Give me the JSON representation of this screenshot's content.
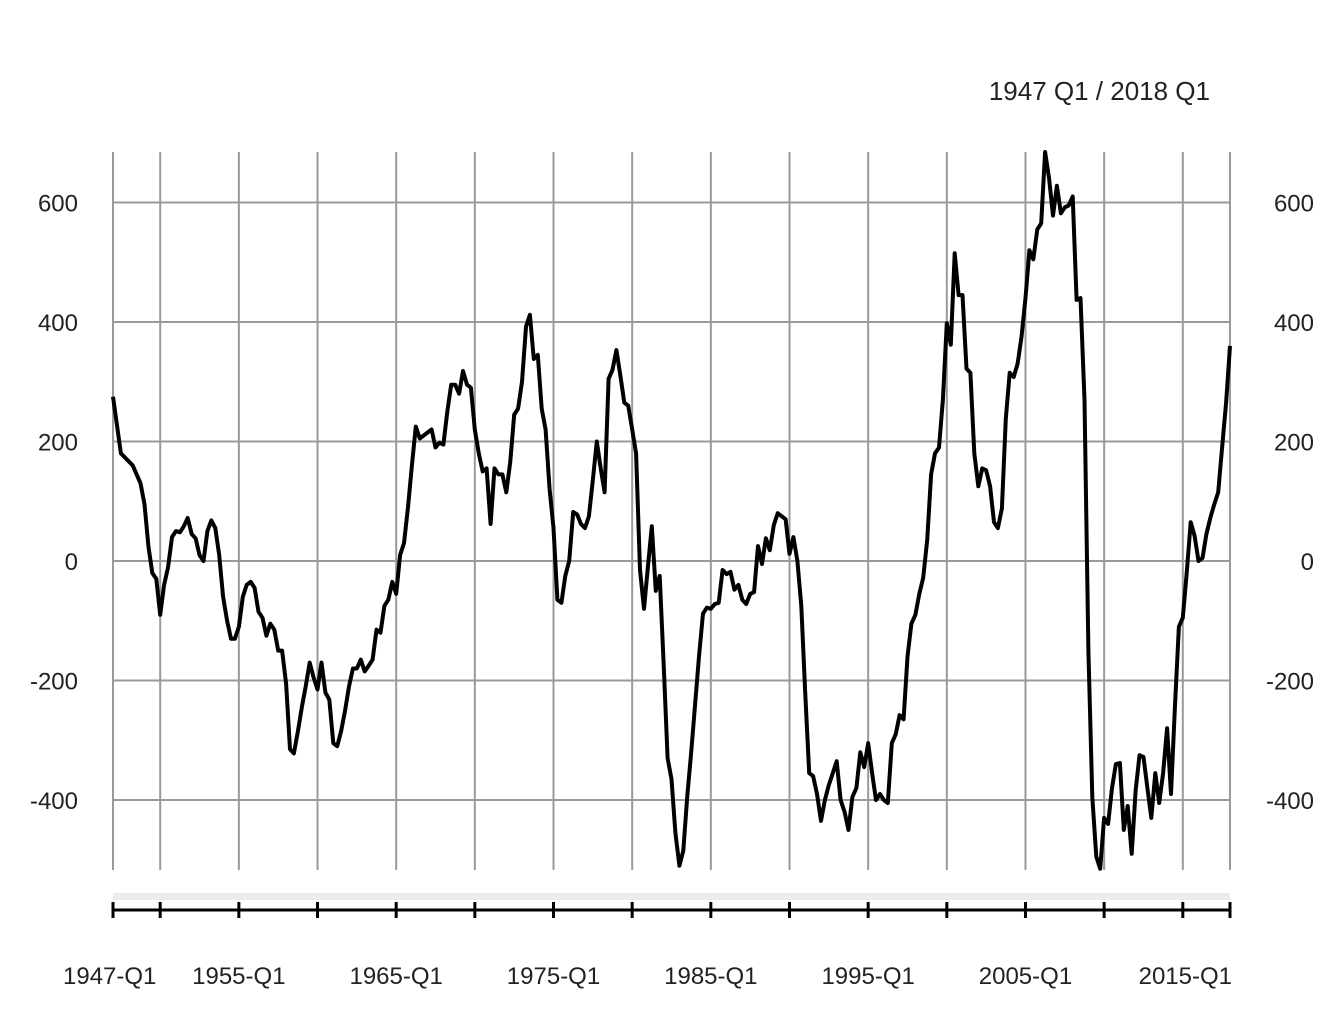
{
  "chart_data": {
    "type": "line",
    "title": "",
    "range_label": "1947 Q1 / 2018 Q1",
    "xlabel": "",
    "ylabel": "",
    "x_start": "1947-Q1",
    "x_end": "2018-Q1",
    "x_tick_labels": [
      {
        "label": "1947-Q1",
        "year": 1947
      },
      {
        "label": "1955-Q1",
        "year": 1955
      },
      {
        "label": "1965-Q1",
        "year": 1965
      },
      {
        "label": "1975-Q1",
        "year": 1975
      },
      {
        "label": "1985-Q1",
        "year": 1985
      },
      {
        "label": "1995-Q1",
        "year": 1995
      },
      {
        "label": "2005-Q1",
        "year": 2005
      },
      {
        "label": "2015-Q1",
        "year": 2015
      }
    ],
    "x_minor_ticks": [
      1950,
      1960,
      1970,
      1980,
      1990,
      2000,
      2010,
      2018
    ],
    "y_ticks": [
      -400,
      -200,
      0,
      200,
      400,
      600
    ],
    "ylim": [
      -520,
      690
    ],
    "grid": true,
    "line_color": "#000000",
    "grid_color": "#9a9a9a",
    "series": [
      {
        "points": [
          [
            "1947-Q1",
            275
          ],
          [
            "1947-Q3",
            180
          ],
          [
            "1948-Q2",
            160
          ],
          [
            "1948-Q4",
            130
          ],
          [
            "1949-Q1",
            95
          ],
          [
            "1949-Q2",
            25
          ],
          [
            "1949-Q3",
            -20
          ],
          [
            "1949-Q4",
            -30
          ],
          [
            "1950-Q1",
            -90
          ],
          [
            "1950-Q2",
            -40
          ],
          [
            "1950-Q3",
            -10
          ],
          [
            "1950-Q4",
            40
          ],
          [
            "1951-Q1",
            50
          ],
          [
            "1951-Q2",
            48
          ],
          [
            "1951-Q3",
            58
          ],
          [
            "1951-Q4",
            72
          ],
          [
            "1952-Q1",
            45
          ],
          [
            "1952-Q2",
            38
          ],
          [
            "1952-Q3",
            10
          ],
          [
            "1952-Q4",
            0
          ],
          [
            "1953-Q1",
            50
          ],
          [
            "1953-Q2",
            68
          ],
          [
            "1953-Q3",
            55
          ],
          [
            "1953-Q4",
            10
          ],
          [
            "1954-Q1",
            -60
          ],
          [
            "1954-Q2",
            -100
          ],
          [
            "1954-Q3",
            -130
          ],
          [
            "1954-Q4",
            -130
          ],
          [
            "1955-Q1",
            -110
          ],
          [
            "1955-Q2",
            -60
          ],
          [
            "1955-Q3",
            -40
          ],
          [
            "1955-Q4",
            -35
          ],
          [
            "1956-Q1",
            -45
          ],
          [
            "1956-Q2",
            -85
          ],
          [
            "1956-Q3",
            -95
          ],
          [
            "1956-Q4",
            -125
          ],
          [
            "1957-Q1",
            -105
          ],
          [
            "1957-Q2",
            -115
          ],
          [
            "1957-Q3",
            -150
          ],
          [
            "1957-Q4",
            -150
          ],
          [
            "1958-Q1",
            -205
          ],
          [
            "1958-Q2",
            -315
          ],
          [
            "1958-Q3",
            -322
          ],
          [
            "1958-Q4",
            -285
          ],
          [
            "1959-Q1",
            -245
          ],
          [
            "1959-Q2",
            -210
          ],
          [
            "1959-Q3",
            -170
          ],
          [
            "1959-Q4",
            -195
          ],
          [
            "1960-Q1",
            -215
          ],
          [
            "1960-Q2",
            -170
          ],
          [
            "1960-Q3",
            -220
          ],
          [
            "1960-Q4",
            -232
          ],
          [
            "1961-Q1",
            -305
          ],
          [
            "1961-Q2",
            -310
          ],
          [
            "1961-Q3",
            -285
          ],
          [
            "1961-Q4",
            -250
          ],
          [
            "1962-Q1",
            -210
          ],
          [
            "1962-Q2",
            -180
          ],
          [
            "1962-Q3",
            -180
          ],
          [
            "1962-Q4",
            -165
          ],
          [
            "1963-Q1",
            -185
          ],
          [
            "1963-Q2",
            -175
          ],
          [
            "1963-Q3",
            -165
          ],
          [
            "1963-Q4",
            -115
          ],
          [
            "1964-Q1",
            -120
          ],
          [
            "1964-Q2",
            -75
          ],
          [
            "1964-Q3",
            -65
          ],
          [
            "1964-Q4",
            -35
          ],
          [
            "1965-Q1",
            -55
          ],
          [
            "1965-Q2",
            10
          ],
          [
            "1965-Q3",
            30
          ],
          [
            "1965-Q4",
            90
          ],
          [
            "1966-Q1",
            160
          ],
          [
            "1966-Q2",
            225
          ],
          [
            "1966-Q3",
            205
          ],
          [
            "1966-Q4",
            210
          ],
          [
            "1967-Q1",
            215
          ],
          [
            "1967-Q2",
            220
          ],
          [
            "1967-Q3",
            190
          ],
          [
            "1967-Q4",
            198
          ],
          [
            "1968-Q1",
            195
          ],
          [
            "1968-Q2",
            250
          ],
          [
            "1968-Q3",
            295
          ],
          [
            "1968-Q4",
            295
          ],
          [
            "1969-Q1",
            280
          ],
          [
            "1969-Q2",
            318
          ],
          [
            "1969-Q3",
            295
          ],
          [
            "1969-Q4",
            290
          ],
          [
            "1970-Q1",
            220
          ],
          [
            "1970-Q2",
            180
          ],
          [
            "1970-Q3",
            150
          ],
          [
            "1970-Q4",
            155
          ],
          [
            "1971-Q1",
            62
          ],
          [
            "1971-Q2",
            155
          ],
          [
            "1971-Q3",
            145
          ],
          [
            "1971-Q4",
            145
          ],
          [
            "1972-Q1",
            115
          ],
          [
            "1972-Q2",
            165
          ],
          [
            "1972-Q3",
            245
          ],
          [
            "1972-Q4",
            255
          ],
          [
            "1973-Q1",
            300
          ],
          [
            "1973-Q2",
            392
          ],
          [
            "1973-Q3",
            412
          ],
          [
            "1973-Q4",
            338
          ],
          [
            "1974-Q1",
            345
          ],
          [
            "1974-Q2",
            255
          ],
          [
            "1974-Q3",
            220
          ],
          [
            "1974-Q4",
            120
          ],
          [
            "1975-Q1",
            55
          ],
          [
            "1975-Q2",
            -65
          ],
          [
            "1975-Q3",
            -70
          ],
          [
            "1975-Q4",
            -25
          ],
          [
            "1976-Q1",
            0
          ],
          [
            "1976-Q2",
            82
          ],
          [
            "1976-Q3",
            78
          ],
          [
            "1976-Q4",
            62
          ],
          [
            "1977-Q1",
            55
          ],
          [
            "1977-Q2",
            75
          ],
          [
            "1977-Q3",
            135
          ],
          [
            "1977-Q4",
            200
          ],
          [
            "1978-Q1",
            155
          ],
          [
            "1978-Q2",
            115
          ],
          [
            "1978-Q3",
            305
          ],
          [
            "1978-Q4",
            320
          ],
          [
            "1979-Q1",
            353
          ],
          [
            "1979-Q2",
            310
          ],
          [
            "1979-Q3",
            265
          ],
          [
            "1979-Q4",
            260
          ],
          [
            "1980-Q1",
            220
          ],
          [
            "1980-Q2",
            180
          ],
          [
            "1980-Q3",
            -15
          ],
          [
            "1980-Q4",
            -80
          ],
          [
            "1981-Q1",
            -10
          ],
          [
            "1981-Q2",
            58
          ],
          [
            "1981-Q3",
            -50
          ],
          [
            "1981-Q4",
            -25
          ],
          [
            "1982-Q1",
            -170
          ],
          [
            "1982-Q2",
            -330
          ],
          [
            "1982-Q3",
            -365
          ],
          [
            "1982-Q4",
            -455
          ],
          [
            "1983-Q1",
            -510
          ],
          [
            "1983-Q2",
            -485
          ],
          [
            "1983-Q3",
            -395
          ],
          [
            "1983-Q4",
            -320
          ],
          [
            "1984-Q1",
            -240
          ],
          [
            "1984-Q2",
            -160
          ],
          [
            "1984-Q3",
            -88
          ],
          [
            "1984-Q4",
            -78
          ],
          [
            "1985-Q1",
            -80
          ],
          [
            "1985-Q2",
            -72
          ],
          [
            "1985-Q3",
            -70
          ],
          [
            "1985-Q4",
            -15
          ],
          [
            "1986-Q1",
            -22
          ],
          [
            "1986-Q2",
            -18
          ],
          [
            "1986-Q3",
            -48
          ],
          [
            "1986-Q4",
            -40
          ],
          [
            "1987-Q1",
            -65
          ],
          [
            "1987-Q2",
            -72
          ],
          [
            "1987-Q3",
            -55
          ],
          [
            "1987-Q4",
            -52
          ],
          [
            "1988-Q1",
            25
          ],
          [
            "1988-Q2",
            -5
          ],
          [
            "1988-Q3",
            38
          ],
          [
            "1988-Q4",
            18
          ],
          [
            "1989-Q1",
            60
          ],
          [
            "1989-Q2",
            80
          ],
          [
            "1989-Q3",
            75
          ],
          [
            "1989-Q4",
            70
          ],
          [
            "1990-Q1",
            12
          ],
          [
            "1990-Q2",
            40
          ],
          [
            "1990-Q3",
            0
          ],
          [
            "1990-Q4",
            -75
          ],
          [
            "1991-Q1",
            -220
          ],
          [
            "1991-Q2",
            -355
          ],
          [
            "1991-Q3",
            -360
          ],
          [
            "1991-Q4",
            -390
          ],
          [
            "1992-Q1",
            -435
          ],
          [
            "1992-Q2",
            -400
          ],
          [
            "1992-Q3",
            -375
          ],
          [
            "1992-Q4",
            -355
          ],
          [
            "1993-Q1",
            -335
          ],
          [
            "1993-Q2",
            -400
          ],
          [
            "1993-Q3",
            -420
          ],
          [
            "1993-Q4",
            -450
          ],
          [
            "1994-Q1",
            -395
          ],
          [
            "1994-Q2",
            -380
          ],
          [
            "1994-Q3",
            -320
          ],
          [
            "1994-Q4",
            -345
          ],
          [
            "1995-Q1",
            -305
          ],
          [
            "1995-Q2",
            -355
          ],
          [
            "1995-Q3",
            -400
          ],
          [
            "1995-Q4",
            -390
          ],
          [
            "1996-Q1",
            -400
          ],
          [
            "1996-Q2",
            -405
          ],
          [
            "1996-Q3",
            -305
          ],
          [
            "1996-Q4",
            -290
          ],
          [
            "1997-Q1",
            -258
          ],
          [
            "1997-Q2",
            -265
          ],
          [
            "1997-Q3",
            -160
          ],
          [
            "1997-Q4",
            -105
          ],
          [
            "1998-Q1",
            -90
          ],
          [
            "1998-Q2",
            -55
          ],
          [
            "1998-Q3",
            -28
          ],
          [
            "1998-Q4",
            35
          ],
          [
            "1999-Q1",
            145
          ],
          [
            "1999-Q2",
            180
          ],
          [
            "1999-Q3",
            190
          ],
          [
            "1999-Q4",
            270
          ],
          [
            "2000-Q1",
            398
          ],
          [
            "2000-Q2",
            362
          ],
          [
            "2000-Q3",
            515
          ],
          [
            "2000-Q4",
            445
          ],
          [
            "2001-Q1",
            445
          ],
          [
            "2001-Q2",
            322
          ],
          [
            "2001-Q3",
            315
          ],
          [
            "2001-Q4",
            180
          ],
          [
            "2002-Q1",
            125
          ],
          [
            "2002-Q2",
            155
          ],
          [
            "2002-Q3",
            152
          ],
          [
            "2002-Q4",
            125
          ],
          [
            "2003-Q1",
            65
          ],
          [
            "2003-Q2",
            55
          ],
          [
            "2003-Q3",
            88
          ],
          [
            "2003-Q4",
            238
          ],
          [
            "2004-Q1",
            315
          ],
          [
            "2004-Q2",
            308
          ],
          [
            "2004-Q3",
            330
          ],
          [
            "2004-Q4",
            375
          ],
          [
            "2005-Q1",
            440
          ],
          [
            "2005-Q2",
            520
          ],
          [
            "2005-Q3",
            505
          ],
          [
            "2005-Q4",
            555
          ],
          [
            "2006-Q1",
            565
          ],
          [
            "2006-Q2",
            690
          ],
          [
            "2006-Q3",
            640
          ],
          [
            "2006-Q4",
            578
          ],
          [
            "2007-Q1",
            628
          ],
          [
            "2007-Q2",
            582
          ],
          [
            "2007-Q3",
            592
          ],
          [
            "2007-Q4",
            595
          ],
          [
            "2008-Q1",
            610
          ],
          [
            "2008-Q2",
            437
          ],
          [
            "2008-Q3",
            440
          ],
          [
            "2008-Q4",
            270
          ],
          [
            "2009-Q1",
            -150
          ],
          [
            "2009-Q2",
            -395
          ],
          [
            "2009-Q3",
            -495
          ],
          [
            "2009-Q4",
            -515
          ],
          [
            "2010-Q1",
            -430
          ],
          [
            "2010-Q2",
            -440
          ],
          [
            "2010-Q3",
            -380
          ],
          [
            "2010-Q4",
            -340
          ],
          [
            "2011-Q1",
            -338
          ],
          [
            "2011-Q2",
            -450
          ],
          [
            "2011-Q3",
            -410
          ],
          [
            "2011-Q4",
            -490
          ],
          [
            "2012-Q1",
            -385
          ],
          [
            "2012-Q2",
            -325
          ],
          [
            "2012-Q3",
            -328
          ],
          [
            "2012-Q4",
            -380
          ],
          [
            "2013-Q1",
            -430
          ],
          [
            "2013-Q2",
            -355
          ],
          [
            "2013-Q3",
            -405
          ],
          [
            "2013-Q4",
            -355
          ],
          [
            "2014-Q1",
            -280
          ],
          [
            "2014-Q2",
            -390
          ],
          [
            "2014-Q3",
            -245
          ],
          [
            "2014-Q4",
            -110
          ],
          [
            "2015-Q1",
            -95
          ],
          [
            "2015-Q2",
            -20
          ],
          [
            "2015-Q3",
            65
          ],
          [
            "2015-Q4",
            42
          ],
          [
            "2016-Q1",
            0
          ],
          [
            "2016-Q2",
            5
          ],
          [
            "2016-Q3",
            45
          ],
          [
            "2016-Q4",
            72
          ],
          [
            "2017-Q1",
            95
          ],
          [
            "2017-Q2",
            115
          ],
          [
            "2017-Q3",
            190
          ],
          [
            "2017-Q4",
            265
          ],
          [
            "2018-Q1",
            360
          ]
        ]
      }
    ]
  }
}
